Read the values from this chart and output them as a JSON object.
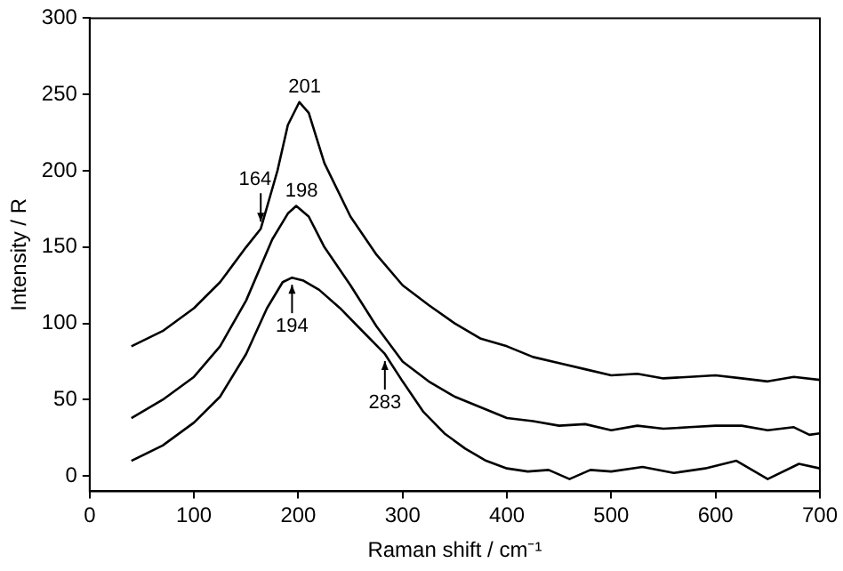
{
  "chart_data": {
    "type": "line",
    "xlabel": "Raman shift / cm⁻¹",
    "ylabel": "Intensity / R",
    "xlim": [
      0,
      700
    ],
    "xticks": [
      0,
      100,
      200,
      300,
      400,
      500,
      600,
      700
    ],
    "ylim": [
      -10,
      300
    ],
    "yticks": [
      0,
      50,
      100,
      150,
      200,
      250,
      300
    ],
    "grid": false,
    "legend": false,
    "marker": "none",
    "line_style": "solid",
    "series": [
      {
        "color": "#000000",
        "x": [
          40,
          70,
          100,
          125,
          150,
          164,
          180,
          190,
          201,
          210,
          225,
          250,
          275,
          300,
          325,
          350,
          375,
          400,
          425,
          450,
          475,
          500,
          525,
          550,
          575,
          600,
          625,
          650,
          675,
          700
        ],
        "values": [
          85,
          95,
          110,
          127,
          150,
          162,
          200,
          230,
          245,
          238,
          205,
          170,
          145,
          125,
          112,
          100,
          90,
          85,
          78,
          74,
          70,
          66,
          67,
          64,
          65,
          66,
          64,
          62,
          65,
          63
        ]
      },
      {
        "color": "#000000",
        "x": [
          40,
          70,
          100,
          125,
          150,
          175,
          190,
          198,
          210,
          225,
          250,
          275,
          300,
          325,
          350,
          375,
          400,
          425,
          450,
          475,
          500,
          525,
          550,
          575,
          600,
          625,
          650,
          675,
          690,
          700
        ],
        "values": [
          38,
          50,
          65,
          85,
          115,
          155,
          172,
          177,
          170,
          150,
          125,
          98,
          75,
          62,
          52,
          45,
          38,
          36,
          33,
          34,
          30,
          33,
          31,
          32,
          33,
          33,
          30,
          32,
          27,
          28
        ]
      },
      {
        "color": "#000000",
        "x": [
          40,
          70,
          100,
          125,
          150,
          170,
          185,
          194,
          205,
          220,
          240,
          260,
          283,
          300,
          320,
          340,
          360,
          380,
          400,
          420,
          440,
          460,
          480,
          500,
          530,
          560,
          590,
          620,
          650,
          680,
          700
        ],
        "values": [
          10,
          20,
          35,
          52,
          80,
          110,
          127,
          130,
          128,
          122,
          110,
          96,
          80,
          62,
          42,
          28,
          18,
          10,
          5,
          3,
          4,
          -2,
          4,
          3,
          6,
          2,
          5,
          10,
          -2,
          8,
          5
        ]
      }
    ],
    "annotations": [
      {
        "text": "201",
        "x": 201,
        "y": 245
      },
      {
        "text": "164",
        "x": 164,
        "y": 162
      },
      {
        "text": "198",
        "x": 198,
        "y": 177
      },
      {
        "text": "194",
        "x": 194,
        "y": 130
      },
      {
        "text": "283",
        "x": 283,
        "y": 80
      }
    ]
  }
}
